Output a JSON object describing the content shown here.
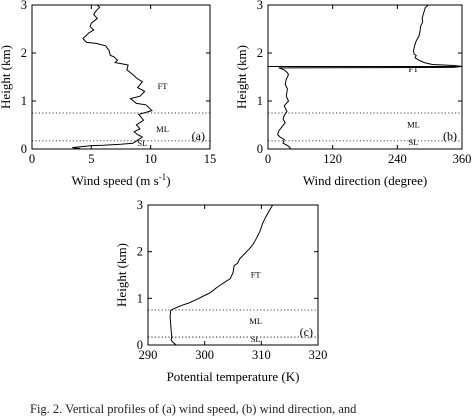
{
  "chart_data": [
    {
      "panel": "(a)",
      "type": "line",
      "xlabel": "Wind speed (m s",
      "xlabel_sup": "-1",
      "xlabel_tail": ")",
      "ylabel": "Height (km)",
      "xlim": [
        0,
        15
      ],
      "ylim": [
        0,
        3
      ],
      "xticks": [
        0,
        5,
        10,
        15
      ],
      "yticks": [
        0,
        1,
        2,
        3
      ],
      "layers": [
        {
          "label": "FT",
          "x": 11.0,
          "y": 1.25
        },
        {
          "label": "ML",
          "x": 11.0,
          "y": 0.35
        },
        {
          "label": "SL",
          "x": 9.3,
          "y": 0.06
        }
      ],
      "boundaries": [
        0.75,
        0.17
      ],
      "series": [
        {
          "x": [
            5.5,
            5.7,
            5.4,
            5.2,
            5.5,
            5.0,
            4.9,
            5.2,
            4.8,
            4.3,
            4.6,
            5.4,
            6.2,
            6.5,
            6.6,
            6.9,
            7.2,
            7.0,
            7.5,
            8.1,
            8.0,
            8.5,
            8.8,
            9.3,
            8.9,
            9.5,
            9.1,
            8.3,
            8.8,
            9.6,
            10.1,
            9.0,
            9.4,
            8.8,
            9.1,
            8.6,
            8.9,
            9.3,
            9.0,
            8.7,
            8.5,
            7.5,
            6.0,
            5.0,
            4.2,
            3.4,
            4.0,
            4.0
          ],
          "y": [
            3.0,
            2.95,
            2.88,
            2.8,
            2.72,
            2.62,
            2.55,
            2.48,
            2.42,
            2.3,
            2.22,
            2.2,
            2.15,
            2.05,
            1.95,
            1.92,
            1.85,
            1.8,
            1.78,
            1.75,
            1.65,
            1.55,
            1.48,
            1.4,
            1.28,
            1.2,
            1.1,
            1.05,
            0.95,
            0.92,
            0.8,
            0.72,
            0.6,
            0.5,
            0.42,
            0.36,
            0.3,
            0.25,
            0.2,
            0.15,
            0.12,
            0.1,
            0.08,
            0.07,
            0.05,
            0.03,
            0.01,
            0.0
          ]
        }
      ]
    },
    {
      "panel": "(b)",
      "type": "line",
      "xlabel": "Wind direction (degree)",
      "ylabel": "Height (km)",
      "xlim": [
        0,
        360
      ],
      "ylim": [
        0,
        3
      ],
      "xticks": [
        0,
        120,
        240,
        360
      ],
      "yticks": [
        0,
        1,
        2,
        3
      ],
      "layers": [
        {
          "label": "FT",
          "x": 270,
          "y": 1.6
        },
        {
          "label": "ML",
          "x": 270,
          "y": 0.45
        },
        {
          "label": "SL",
          "x": 270,
          "y": 0.08
        }
      ],
      "boundaries": [
        0.75,
        0.17
      ],
      "series": [
        {
          "x": [
            298,
            292,
            290,
            288,
            286,
            287,
            283,
            282,
            280,
            275,
            272,
            270,
            271,
            275,
            273,
            280,
            290,
            305,
            345,
            360,
            345,
            20,
            30,
            35,
            38,
            34,
            32,
            36,
            34,
            38,
            30,
            35,
            30,
            28,
            32,
            25,
            20,
            18,
            22,
            30,
            28,
            35,
            40,
            42
          ],
          "y": [
            3.0,
            2.95,
            2.88,
            2.8,
            2.72,
            2.65,
            2.55,
            2.45,
            2.35,
            2.25,
            2.15,
            2.05,
            1.98,
            1.95,
            1.9,
            1.85,
            1.8,
            1.76,
            1.74,
            1.72,
            1.7,
            1.69,
            1.65,
            1.6,
            1.55,
            1.45,
            1.35,
            1.25,
            1.1,
            1.0,
            0.9,
            0.78,
            0.7,
            0.62,
            0.55,
            0.45,
            0.38,
            0.3,
            0.25,
            0.2,
            0.12,
            0.08,
            0.04,
            0.0
          ]
        }
      ]
    },
    {
      "panel": "(c)",
      "type": "line",
      "xlabel": "Potential temperature (K)",
      "ylabel": "Height (km)",
      "xlim": [
        290,
        320
      ],
      "ylim": [
        0,
        3
      ],
      "xticks": [
        290,
        300,
        310,
        320
      ],
      "yticks": [
        0,
        1,
        2,
        3
      ],
      "layers": [
        {
          "label": "FT",
          "x": 309,
          "y": 1.45
        },
        {
          "label": "ML",
          "x": 309,
          "y": 0.45
        },
        {
          "label": "SL",
          "x": 309,
          "y": 0.06
        }
      ],
      "boundaries": [
        0.75,
        0.17
      ],
      "series": [
        {
          "x": [
            312.0,
            311.5,
            310.8,
            310.2,
            309.8,
            309.2,
            308.5,
            307.8,
            307.0,
            306.2,
            305.8,
            305.2,
            305.0,
            304.5,
            303.2,
            302.0,
            301.0,
            299.8,
            298.5,
            297.2,
            296.0,
            295.0,
            294.4,
            294.0,
            293.9,
            294.0,
            294.1,
            294.2,
            294.1,
            294.5,
            295.0
          ],
          "y": [
            3.0,
            2.9,
            2.75,
            2.6,
            2.45,
            2.3,
            2.15,
            2.05,
            1.95,
            1.85,
            1.75,
            1.7,
            1.55,
            1.42,
            1.32,
            1.22,
            1.12,
            1.05,
            0.97,
            0.9,
            0.85,
            0.8,
            0.77,
            0.74,
            0.6,
            0.45,
            0.3,
            0.18,
            0.1,
            0.05,
            0.0
          ]
        }
      ]
    }
  ],
  "caption": "Fig. 2. Vertical profiles of (a) wind speed, (b) wind direction, and"
}
